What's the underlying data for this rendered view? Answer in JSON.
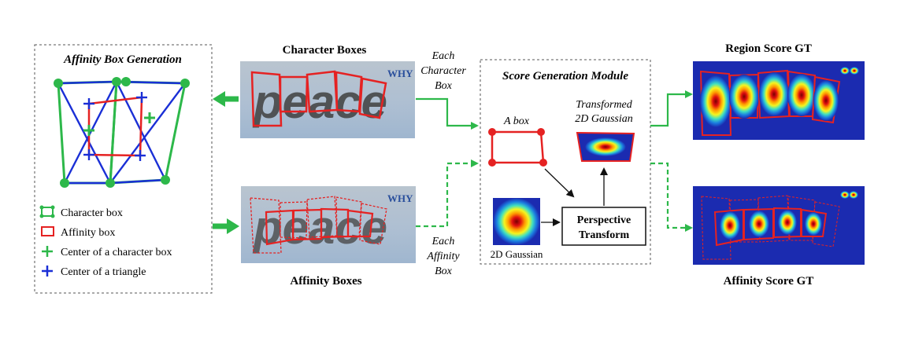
{
  "affinity_panel": {
    "title": "Affinity Box Generation",
    "legend": [
      {
        "label": "Character box",
        "icon": "character-box-icon",
        "color": "#2db84a"
      },
      {
        "label": "Affinity box",
        "icon": "affinity-box-icon",
        "color": "#e52222"
      },
      {
        "label": "Center of a character box",
        "icon": "green-plus-icon",
        "color": "#2db84a"
      },
      {
        "label": "Center of a triangle",
        "icon": "blue-plus-icon",
        "color": "#1a2fd6"
      }
    ]
  },
  "character_boxes": {
    "label": "Character Boxes",
    "word": "peace",
    "watermark": "WHY"
  },
  "affinity_boxes": {
    "label": "Affinity Boxes",
    "word": "peace",
    "watermark": "WHY"
  },
  "arrows": {
    "each_character_box": [
      "Each",
      "Character",
      "Box"
    ],
    "each_affinity_box": [
      "Each",
      "Affinity",
      "Box"
    ]
  },
  "score_module": {
    "title": "Score Generation Module",
    "a_box": "A box",
    "transformed": [
      "Transformed",
      "2D Gaussian"
    ],
    "gaussian": "2D Gaussian",
    "perspective": [
      "Perspective",
      "Transform"
    ]
  },
  "region_score": {
    "label": "Region Score GT"
  },
  "affinity_score": {
    "label": "Affinity Score GT"
  },
  "colors": {
    "green": "#2db84a",
    "red": "#e52222",
    "blue": "#1a2fd6",
    "heatmap_bg": "#1b2bb0"
  }
}
